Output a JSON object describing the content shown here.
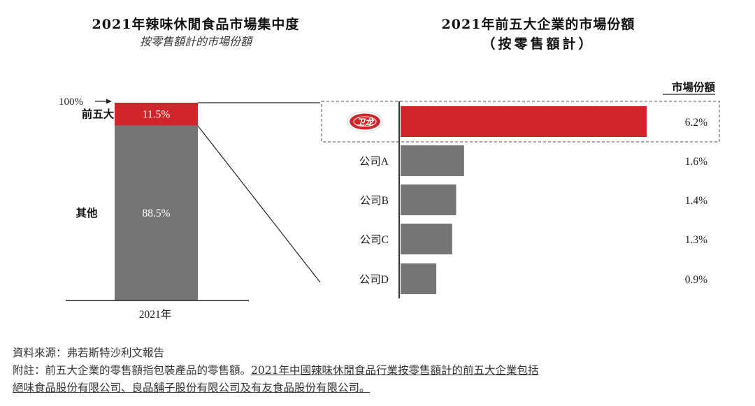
{
  "left_chart": {
    "title": "2021年辣味休閒食品市場集中度",
    "subtitle": "按零售額計的市場份額"
  },
  "right_chart": {
    "title": "2021年前五大企業的市場份額",
    "subtitle": "（按零售額計）",
    "share_header": "市場份額",
    "logo_text": "卫龙"
  },
  "colors": {
    "red": "#d0262b",
    "gray": "#757575",
    "axis": "#222222"
  },
  "chart_data": [
    {
      "type": "bar",
      "stacked": true,
      "categories": [
        "2021年"
      ],
      "series": [
        {
          "name": "前五大",
          "values": [
            11.5
          ],
          "label": "11.5%"
        },
        {
          "name": "其他",
          "values": [
            88.5
          ],
          "label": "88.5%"
        }
      ],
      "ylim": [
        0,
        100
      ],
      "top_marker": "100%"
    },
    {
      "type": "bar",
      "orientation": "horizontal",
      "categories": [
        "卫龙",
        "公司A",
        "公司B",
        "公司C",
        "公司D"
      ],
      "values": [
        6.2,
        1.6,
        1.4,
        1.3,
        0.9
      ],
      "labels": [
        "6.2%",
        "1.6%",
        "1.4%",
        "1.3%",
        "0.9%"
      ],
      "highlight_index": 0
    }
  ],
  "footer": {
    "source": "資料來源：弗若斯特沙利文報告",
    "note_prefix": "附註：前五大企業的零售額指包裝產品的零售額。",
    "note_underlined_1": "2021年中國辣味休閒食品行業按零售額計的前五大企業包括",
    "note_underlined_2": "絕味食品股份有限公司、良品舖子股份有限公司及有友食品股份有限公司。"
  }
}
